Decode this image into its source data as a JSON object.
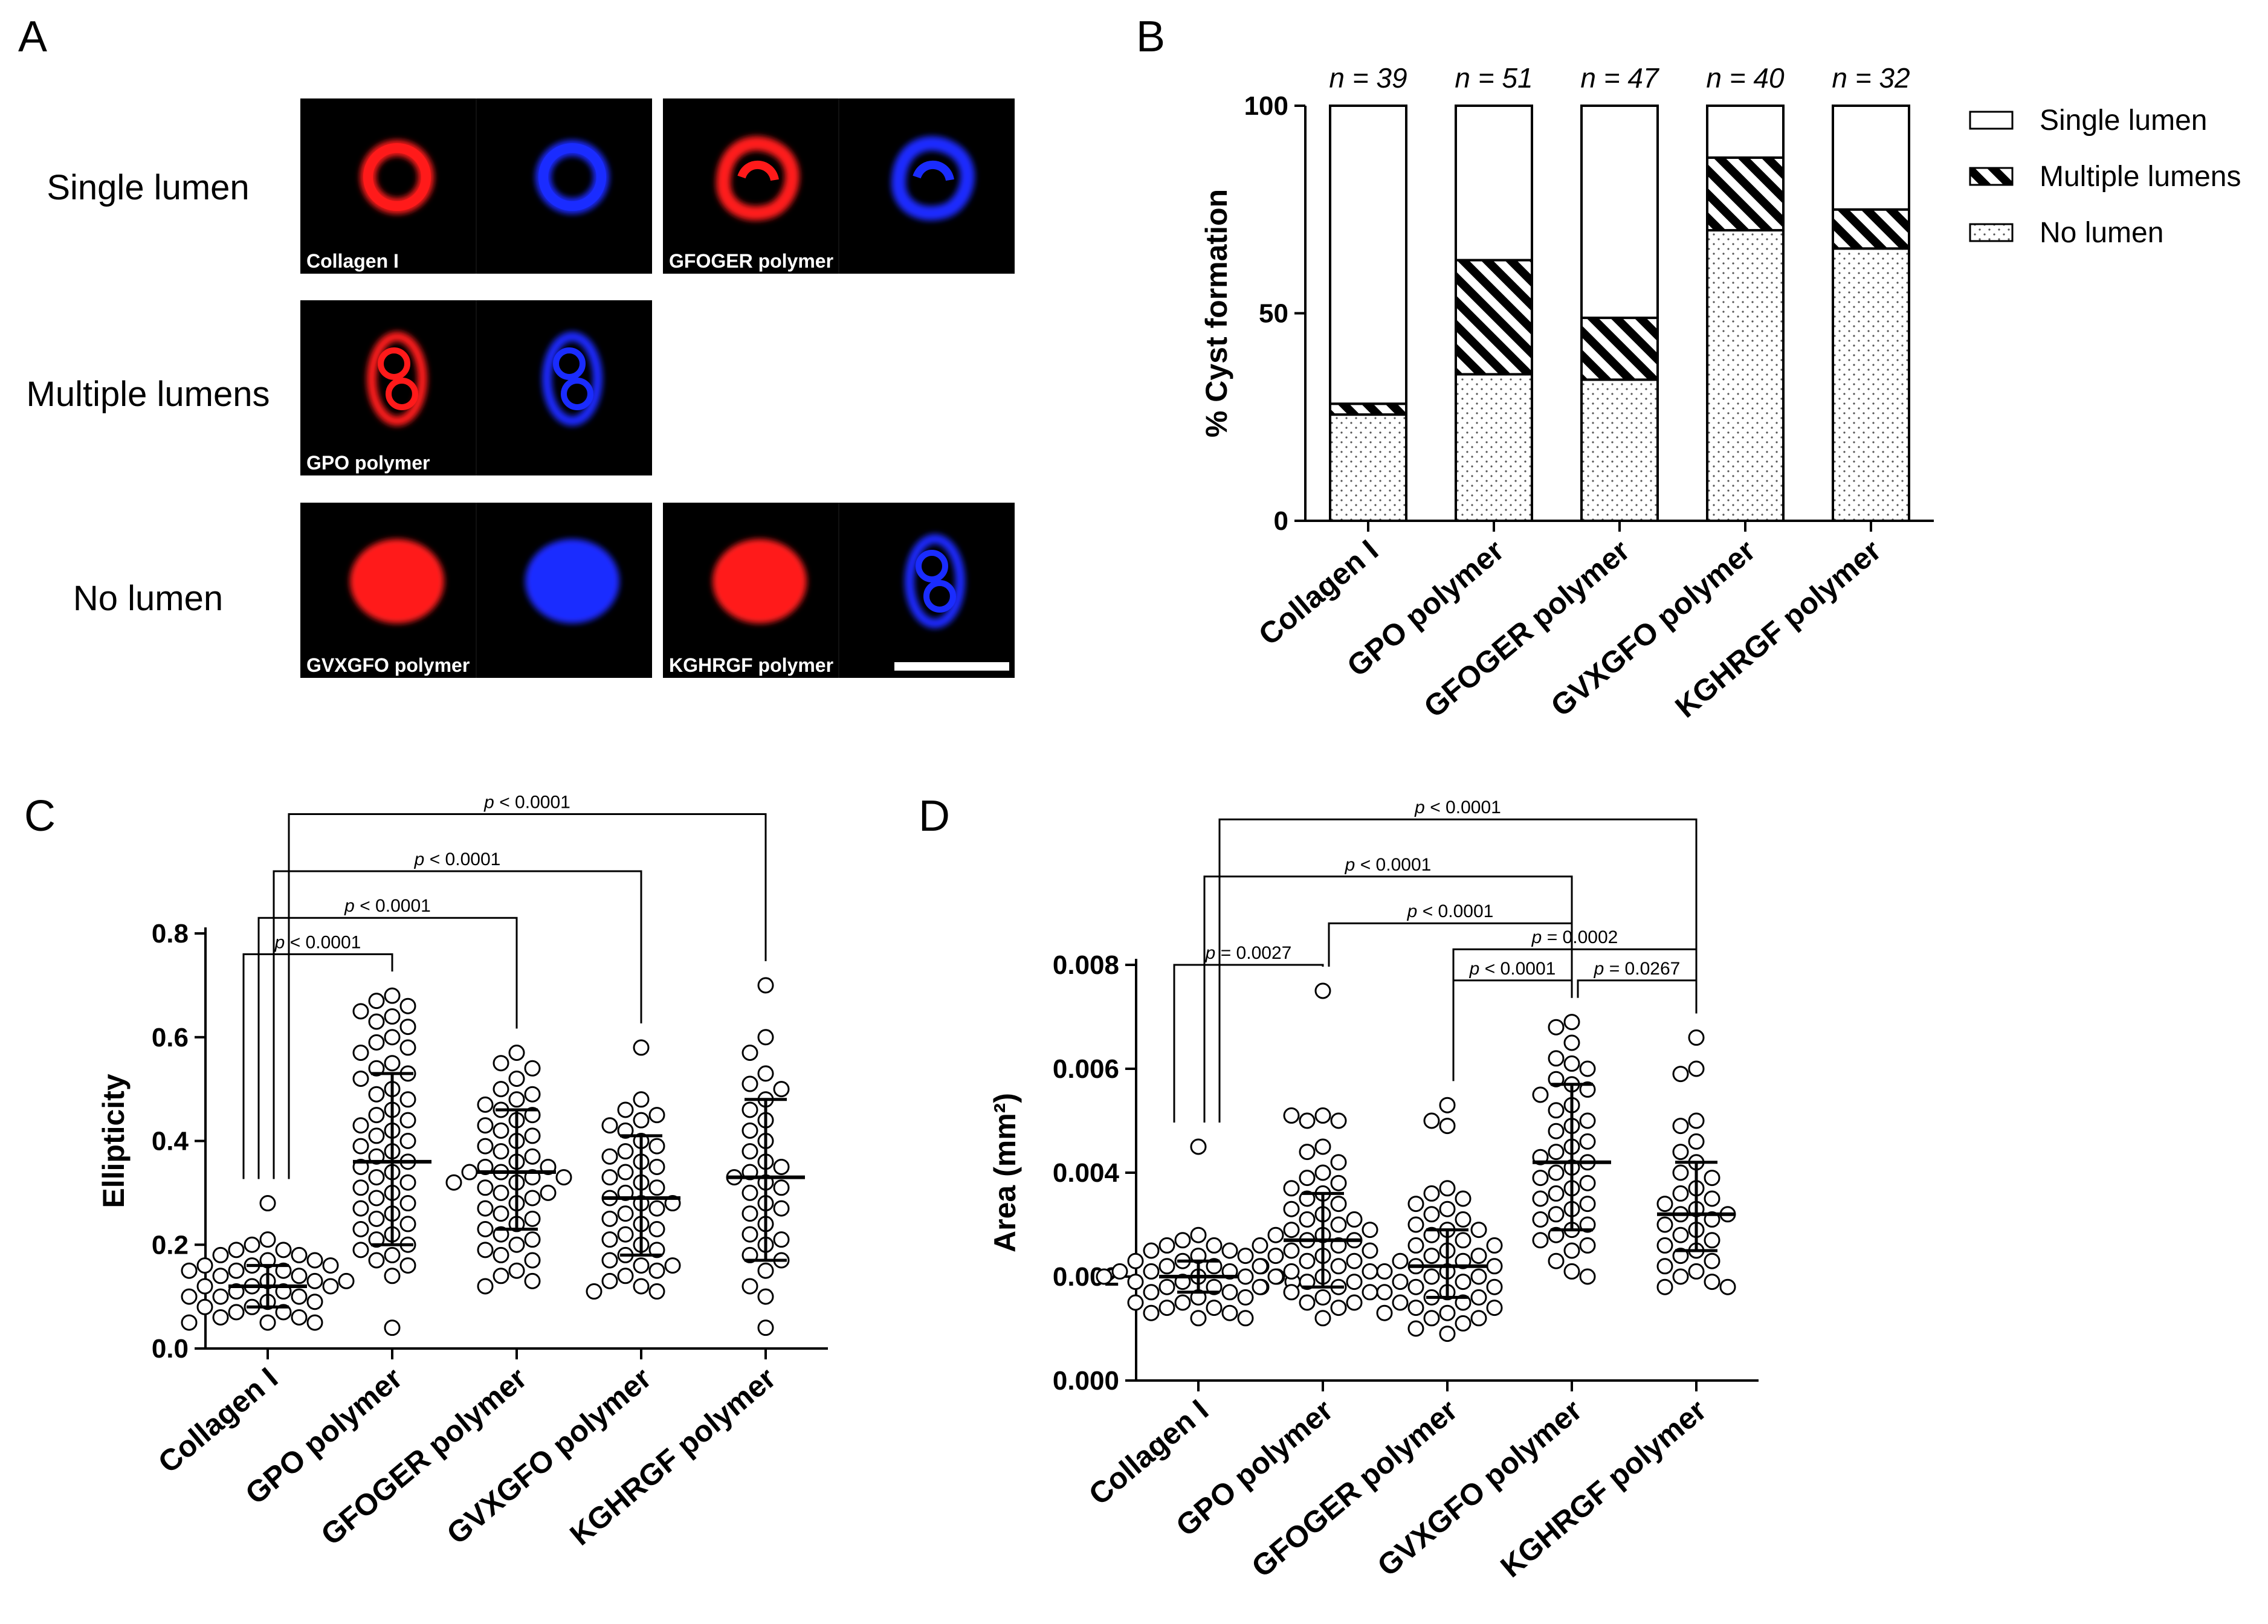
{
  "panels": {
    "A": {
      "label": "A",
      "rows": [
        {
          "label": "Single lumen",
          "images": [
            {
              "caption": "Collagen I",
              "red": "ring",
              "blue": "ring"
            },
            {
              "caption": "GFOGER polymer",
              "red": "irregular",
              "blue": "irregular"
            }
          ]
        },
        {
          "label": "Multiple lumens",
          "images": [
            {
              "caption": "GPO polymer",
              "red": "multi",
              "blue": "multi"
            }
          ]
        },
        {
          "label": "No lumen",
          "images": [
            {
              "caption": "GVXGFO polymer",
              "red": "solid",
              "blue": "solid"
            },
            {
              "caption": "KGHRGF polymer",
              "red": "solid",
              "blue": "multi"
            }
          ]
        }
      ],
      "colors": {
        "red": "#ff1a1a",
        "blue": "#1a2cff",
        "background": "#000000"
      }
    },
    "B": {
      "label": "B"
    },
    "C": {
      "label": "C"
    },
    "D": {
      "label": "D"
    }
  },
  "chart_data": [
    {
      "panel": "B",
      "type": "bar",
      "stacked": true,
      "ylabel": "% Cyst formation",
      "ylim": [
        0,
        100
      ],
      "yticks": [
        0,
        50,
        100
      ],
      "categories": [
        "Collagen I",
        "GPO polymer",
        "GFOGER polymer",
        "GVXGFO polymer",
        "KGHRGF polymer"
      ],
      "n_labels": [
        "n = 39",
        "n = 51",
        "n = 47",
        "n = 40",
        "n = 32"
      ],
      "series": [
        {
          "name": "No lumen",
          "pattern": "dots",
          "values": [
            25.6,
            35.3,
            34.0,
            70.0,
            65.6
          ]
        },
        {
          "name": "Multiple lumens",
          "pattern": "hatch",
          "values": [
            2.6,
            27.5,
            14.9,
            17.5,
            9.4
          ]
        },
        {
          "name": "Single lumen",
          "pattern": "none",
          "values": [
            71.8,
            37.2,
            51.1,
            12.5,
            25.0
          ]
        }
      ],
      "legend": {
        "order": [
          "Single lumen",
          "Multiple lumens",
          "No lumen"
        ],
        "placement": "right"
      }
    },
    {
      "panel": "C",
      "type": "scatter",
      "ylabel": "Ellipticity",
      "ylim": [
        0.0,
        0.8
      ],
      "yticks": [
        "0.0",
        "0.2",
        "0.4",
        "0.6",
        "0.8"
      ],
      "categories": [
        "Collagen I",
        "GPO polymer",
        "GFOGER polymer",
        "GVXGFO polymer",
        "KGHRGF polymer"
      ],
      "series": [
        {
          "category": "Collagen I",
          "mean": 0.12,
          "sd_low": 0.08,
          "sd_high": 0.16,
          "values": [
            0.28,
            0.21,
            0.2,
            0.19,
            0.19,
            0.18,
            0.18,
            0.17,
            0.17,
            0.16,
            0.16,
            0.16,
            0.15,
            0.15,
            0.15,
            0.14,
            0.14,
            0.13,
            0.13,
            0.13,
            0.12,
            0.12,
            0.12,
            0.11,
            0.11,
            0.1,
            0.1,
            0.1,
            0.09,
            0.09,
            0.08,
            0.08,
            0.07,
            0.07,
            0.06,
            0.06,
            0.05,
            0.05,
            0.05
          ]
        },
        {
          "category": "GPO polymer",
          "mean": 0.36,
          "sd_low": 0.2,
          "sd_high": 0.53,
          "values": [
            0.68,
            0.67,
            0.66,
            0.65,
            0.64,
            0.63,
            0.62,
            0.6,
            0.59,
            0.58,
            0.57,
            0.55,
            0.54,
            0.53,
            0.52,
            0.5,
            0.49,
            0.48,
            0.46,
            0.45,
            0.44,
            0.43,
            0.42,
            0.41,
            0.4,
            0.39,
            0.38,
            0.37,
            0.36,
            0.35,
            0.34,
            0.33,
            0.32,
            0.31,
            0.3,
            0.29,
            0.28,
            0.27,
            0.26,
            0.25,
            0.24,
            0.23,
            0.22,
            0.21,
            0.2,
            0.19,
            0.18,
            0.17,
            0.16,
            0.14,
            0.04
          ]
        },
        {
          "category": "GFOGER polymer",
          "mean": 0.34,
          "sd_low": 0.23,
          "sd_high": 0.46,
          "values": [
            0.57,
            0.55,
            0.54,
            0.52,
            0.5,
            0.49,
            0.48,
            0.47,
            0.46,
            0.45,
            0.44,
            0.43,
            0.42,
            0.41,
            0.4,
            0.39,
            0.38,
            0.37,
            0.36,
            0.35,
            0.35,
            0.34,
            0.34,
            0.33,
            0.33,
            0.32,
            0.32,
            0.31,
            0.3,
            0.3,
            0.29,
            0.28,
            0.27,
            0.26,
            0.25,
            0.24,
            0.23,
            0.22,
            0.21,
            0.2,
            0.19,
            0.18,
            0.17,
            0.15,
            0.14,
            0.13,
            0.12
          ]
        },
        {
          "category": "GVXGFO polymer",
          "mean": 0.29,
          "sd_low": 0.18,
          "sd_high": 0.41,
          "values": [
            0.58,
            0.48,
            0.46,
            0.45,
            0.44,
            0.43,
            0.42,
            0.4,
            0.39,
            0.38,
            0.37,
            0.36,
            0.35,
            0.34,
            0.33,
            0.32,
            0.31,
            0.3,
            0.29,
            0.28,
            0.28,
            0.27,
            0.26,
            0.25,
            0.24,
            0.23,
            0.22,
            0.21,
            0.2,
            0.19,
            0.18,
            0.17,
            0.16,
            0.16,
            0.15,
            0.14,
            0.13,
            0.12,
            0.11,
            0.11
          ]
        },
        {
          "category": "KGHRGF polymer",
          "mean": 0.33,
          "sd_low": 0.17,
          "sd_high": 0.48,
          "values": [
            0.7,
            0.6,
            0.57,
            0.53,
            0.51,
            0.5,
            0.48,
            0.46,
            0.44,
            0.42,
            0.4,
            0.38,
            0.36,
            0.35,
            0.34,
            0.33,
            0.32,
            0.31,
            0.3,
            0.28,
            0.27,
            0.26,
            0.24,
            0.22,
            0.21,
            0.2,
            0.18,
            0.17,
            0.15,
            0.12,
            0.1,
            0.04
          ]
        }
      ],
      "brackets": [
        {
          "from": 0,
          "to": 1,
          "label": "p < 0.0001",
          "y": 0.76
        },
        {
          "from": 0,
          "to": 2,
          "label": "p < 0.0001",
          "y": 0.83
        },
        {
          "from": 0,
          "to": 3,
          "label": "p < 0.0001",
          "y": 0.92
        },
        {
          "from": 0,
          "to": 4,
          "label": "p < 0.0001",
          "y": 1.03
        }
      ]
    },
    {
      "panel": "D",
      "type": "scatter",
      "ylabel": "Area (mm²)",
      "ylim": [
        0.0,
        0.008
      ],
      "yticks": [
        "0.000",
        "0.002",
        "0.004",
        "0.006",
        "0.008"
      ],
      "categories": [
        "Collagen I",
        "GPO polymer",
        "GFOGER polymer",
        "GVXGFO polymer",
        "KGHRGF polymer"
      ],
      "series": [
        {
          "category": "Collagen I",
          "mean": 0.002,
          "sd_low": 0.0017,
          "sd_high": 0.0023,
          "values": [
            0.0045,
            0.0028,
            0.0027,
            0.0026,
            0.0026,
            0.0025,
            0.0025,
            0.0024,
            0.0024,
            0.0023,
            0.0023,
            0.0022,
            0.0022,
            0.0022,
            0.0021,
            0.0021,
            0.0021,
            0.002,
            0.002,
            0.002,
            0.002,
            0.0019,
            0.0019,
            0.0019,
            0.0018,
            0.0018,
            0.0018,
            0.0017,
            0.0017,
            0.0016,
            0.0016,
            0.0015,
            0.0015,
            0.0014,
            0.0014,
            0.0013,
            0.0013,
            0.0012,
            0.0012
          ]
        },
        {
          "category": "GPO polymer",
          "mean": 0.0027,
          "sd_low": 0.0018,
          "sd_high": 0.0036,
          "values": [
            0.0075,
            0.0051,
            0.0051,
            0.005,
            0.005,
            0.0045,
            0.0044,
            0.0042,
            0.004,
            0.0039,
            0.0038,
            0.0037,
            0.0036,
            0.0035,
            0.0034,
            0.0033,
            0.0032,
            0.0031,
            0.0031,
            0.003,
            0.0029,
            0.0029,
            0.0028,
            0.0028,
            0.0027,
            0.0027,
            0.0026,
            0.0026,
            0.0025,
            0.0025,
            0.0024,
            0.0024,
            0.0023,
            0.0023,
            0.0022,
            0.0022,
            0.0021,
            0.0021,
            0.002,
            0.002,
            0.0019,
            0.0019,
            0.0018,
            0.0018,
            0.0017,
            0.0017,
            0.0016,
            0.0015,
            0.0015,
            0.0014,
            0.0012
          ]
        },
        {
          "category": "GFOGER polymer",
          "mean": 0.0022,
          "sd_low": 0.0016,
          "sd_high": 0.0029,
          "values": [
            0.0053,
            0.005,
            0.0049,
            0.0037,
            0.0036,
            0.0035,
            0.0034,
            0.0033,
            0.0032,
            0.0031,
            0.003,
            0.0029,
            0.0029,
            0.0028,
            0.0027,
            0.0026,
            0.0026,
            0.0025,
            0.0024,
            0.0024,
            0.0023,
            0.0023,
            0.0022,
            0.0022,
            0.0021,
            0.0021,
            0.002,
            0.002,
            0.0019,
            0.0019,
            0.0018,
            0.0018,
            0.0017,
            0.0017,
            0.0016,
            0.0016,
            0.0015,
            0.0015,
            0.0014,
            0.0014,
            0.0013,
            0.0013,
            0.0012,
            0.0012,
            0.0011,
            0.001,
            0.0009
          ]
        },
        {
          "category": "GVXGFO polymer",
          "mean": 0.0042,
          "sd_low": 0.0029,
          "sd_high": 0.0057,
          "values": [
            0.0069,
            0.0068,
            0.0065,
            0.0062,
            0.0061,
            0.006,
            0.0058,
            0.0057,
            0.0056,
            0.0055,
            0.0053,
            0.0052,
            0.005,
            0.0049,
            0.0048,
            0.0046,
            0.0045,
            0.0044,
            0.0043,
            0.0042,
            0.0041,
            0.004,
            0.0039,
            0.0038,
            0.0037,
            0.0036,
            0.0035,
            0.0034,
            0.0033,
            0.0032,
            0.0031,
            0.003,
            0.0029,
            0.0028,
            0.0027,
            0.0026,
            0.0025,
            0.0023,
            0.0021,
            0.002
          ]
        },
        {
          "category": "KGHRGF polymer",
          "mean": 0.0032,
          "sd_low": 0.0025,
          "sd_high": 0.0042,
          "values": [
            0.0066,
            0.006,
            0.0059,
            0.005,
            0.0049,
            0.0046,
            0.0044,
            0.0042,
            0.004,
            0.0039,
            0.0037,
            0.0036,
            0.0035,
            0.0034,
            0.0033,
            0.0032,
            0.0032,
            0.0031,
            0.003,
            0.0029,
            0.0028,
            0.0027,
            0.0026,
            0.0025,
            0.0024,
            0.0023,
            0.0022,
            0.0021,
            0.002,
            0.0019,
            0.0018,
            0.0018
          ]
        }
      ],
      "brackets": [
        {
          "from": 0,
          "to": 1,
          "label": "p = 0.0027",
          "y": 0.008
        },
        {
          "from": 1,
          "to": 3,
          "label": "p < 0.0001",
          "y": 0.0088
        },
        {
          "from": 0,
          "to": 3,
          "label": "p < 0.0001",
          "y": 0.0097
        },
        {
          "from": 0,
          "to": 4,
          "label": "p < 0.0001",
          "y": 0.0108
        },
        {
          "from": 2,
          "to": 3,
          "label": "p < 0.0001",
          "y": 0.0077
        },
        {
          "from": 2,
          "to": 4,
          "label": "p = 0.0002",
          "y": 0.0083
        },
        {
          "from": 3,
          "to": 4,
          "label": "p = 0.0267",
          "y": 0.0077
        }
      ]
    }
  ]
}
